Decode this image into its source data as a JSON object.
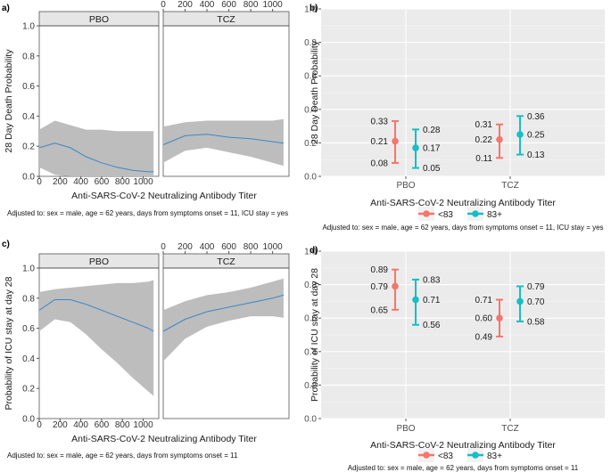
{
  "chart_data": [
    {
      "id": "a",
      "type": "area",
      "panel_label": "a)",
      "facets": [
        "PBO",
        "TCZ"
      ],
      "xlabel": "Anti-SARS-CoV-2 Neutralizing Antibody Titer",
      "ylabel": "28 Day Death Probability",
      "xlim": [
        0,
        1150
      ],
      "ylim": [
        0,
        1.0
      ],
      "x_ticks": [
        "0",
        "200",
        "400",
        "600",
        "800",
        "1000"
      ],
      "y_ticks": [
        "0.0",
        "0.2",
        "0.4",
        "0.6",
        "0.8",
        "1.0"
      ],
      "footnote": "Adjusted to: sex = male, age = 62 years, days from symptoms onset = 11, ICU stay = yes",
      "line_color": "#3a87c8",
      "band_color": "#bdbdbd",
      "curves": [
        {
          "facet": "PBO",
          "x": [
            0,
            150,
            300,
            450,
            600,
            750,
            900,
            1050,
            1100
          ],
          "y": [
            0.19,
            0.22,
            0.19,
            0.13,
            0.09,
            0.06,
            0.04,
            0.03,
            0.03
          ],
          "lower": [
            0.06,
            0.01,
            0.0,
            0.0,
            0.0,
            0.0,
            0.0,
            0.0,
            0.0
          ],
          "upper": [
            0.31,
            0.37,
            0.34,
            0.31,
            0.31,
            0.3,
            0.3,
            0.3,
            0.3
          ]
        },
        {
          "facet": "TCZ",
          "x": [
            0,
            200,
            400,
            600,
            800,
            1000,
            1100
          ],
          "y": [
            0.21,
            0.27,
            0.28,
            0.26,
            0.25,
            0.23,
            0.22
          ],
          "lower": [
            0.09,
            0.17,
            0.19,
            0.16,
            0.13,
            0.09,
            0.07
          ],
          "upper": [
            0.33,
            0.36,
            0.37,
            0.37,
            0.37,
            0.37,
            0.38
          ]
        }
      ]
    },
    {
      "id": "b",
      "type": "scatter",
      "panel_label": "b)",
      "categories": [
        "PBO",
        "TCZ"
      ],
      "xlabel": "Anti-SARS-CoV-2 Neutralizing Antibody Titer",
      "ylabel": "28 Day Death Probability",
      "ylim": [
        0,
        1.0
      ],
      "y_ticks": [
        "0.0",
        "0.2",
        "0.4",
        "0.6",
        "0.8",
        "1.0"
      ],
      "legend": "bottom",
      "footnote": "Adjusted to: sex = male, age = 62 years, days from symptoms onset = 11, ICU stay = yes",
      "series": [
        {
          "name": "<83",
          "color": "#f4766c",
          "points": [
            {
              "category": "PBO",
              "est": 0.21,
              "lower": 0.08,
              "upper": 0.33,
              "labels": [
                "0.33",
                "0.21",
                "0.08"
              ]
            },
            {
              "category": "TCZ",
              "est": 0.22,
              "lower": 0.11,
              "upper": 0.31,
              "labels": [
                "0.31",
                "0.22",
                "0.11"
              ]
            }
          ]
        },
        {
          "name": "83+",
          "color": "#17bec5",
          "points": [
            {
              "category": "PBO",
              "est": 0.17,
              "lower": 0.05,
              "upper": 0.28,
              "labels": [
                "0.28",
                "0.17",
                "0.05"
              ]
            },
            {
              "category": "TCZ",
              "est": 0.25,
              "lower": 0.13,
              "upper": 0.36,
              "labels": [
                "0.36",
                "0.25",
                "0.13"
              ]
            }
          ]
        }
      ]
    },
    {
      "id": "c",
      "type": "area",
      "panel_label": "c)",
      "facets": [
        "PBO",
        "TCZ"
      ],
      "xlabel": "Anti-SARS-CoV-2 Neutralizing Antibody Titer",
      "ylabel": "Probability of ICU stay at day 28",
      "xlim": [
        0,
        1150
      ],
      "ylim": [
        0,
        1.0
      ],
      "x_ticks": [
        "0",
        "200",
        "400",
        "600",
        "800",
        "1000"
      ],
      "y_ticks": [
        "0.0",
        "0.2",
        "0.4",
        "0.6",
        "0.8",
        "1.0"
      ],
      "footnote": "Adjusted to: sex = male, age = 62 years, days from symptoms onset = 11",
      "line_color": "#3a87c8",
      "band_color": "#bdbdbd",
      "curves": [
        {
          "facet": "PBO",
          "x": [
            0,
            150,
            300,
            450,
            600,
            750,
            900,
            1050,
            1100
          ],
          "y": [
            0.72,
            0.79,
            0.79,
            0.76,
            0.72,
            0.68,
            0.64,
            0.6,
            0.58
          ],
          "lower": [
            0.58,
            0.66,
            0.64,
            0.56,
            0.46,
            0.37,
            0.27,
            0.18,
            0.15
          ],
          "upper": [
            0.84,
            0.86,
            0.87,
            0.88,
            0.89,
            0.9,
            0.9,
            0.91,
            0.92
          ]
        },
        {
          "facet": "TCZ",
          "x": [
            0,
            200,
            400,
            600,
            800,
            1000,
            1100
          ],
          "y": [
            0.58,
            0.66,
            0.71,
            0.74,
            0.77,
            0.8,
            0.82
          ],
          "lower": [
            0.38,
            0.53,
            0.61,
            0.65,
            0.68,
            0.68,
            0.67
          ],
          "upper": [
            0.72,
            0.78,
            0.82,
            0.84,
            0.87,
            0.91,
            0.93
          ]
        }
      ]
    },
    {
      "id": "d",
      "type": "scatter",
      "panel_label": "d)",
      "categories": [
        "PBO",
        "TCZ"
      ],
      "xlabel": "Anti-SARS-CoV-2 Neutralizing Antibody Titer",
      "ylabel": "Probability of ICU stay at day 28",
      "ylim": [
        0,
        1.0
      ],
      "y_ticks": [
        "0.0",
        "0.2",
        "0.4",
        "0.6",
        "0.8",
        "1.0"
      ],
      "legend": "bottom",
      "footnote": "Adjusted to: sex = male, age = 62 years, days from symptoms onset = 11",
      "series": [
        {
          "name": "<83",
          "color": "#f4766c",
          "points": [
            {
              "category": "PBO",
              "est": 0.79,
              "lower": 0.65,
              "upper": 0.89,
              "labels": [
                "0.89",
                "0.79",
                "0.65"
              ]
            },
            {
              "category": "TCZ",
              "est": 0.6,
              "lower": 0.49,
              "upper": 0.71,
              "labels": [
                "0.71",
                "0.60",
                "0.49"
              ]
            }
          ]
        },
        {
          "name": "83+",
          "color": "#17bec5",
          "points": [
            {
              "category": "PBO",
              "est": 0.71,
              "lower": 0.56,
              "upper": 0.83,
              "labels": [
                "0.83",
                "0.71",
                "0.56"
              ]
            },
            {
              "category": "TCZ",
              "est": 0.7,
              "lower": 0.58,
              "upper": 0.79,
              "labels": [
                "0.79",
                "0.70",
                "0.58"
              ]
            }
          ]
        }
      ]
    }
  ]
}
